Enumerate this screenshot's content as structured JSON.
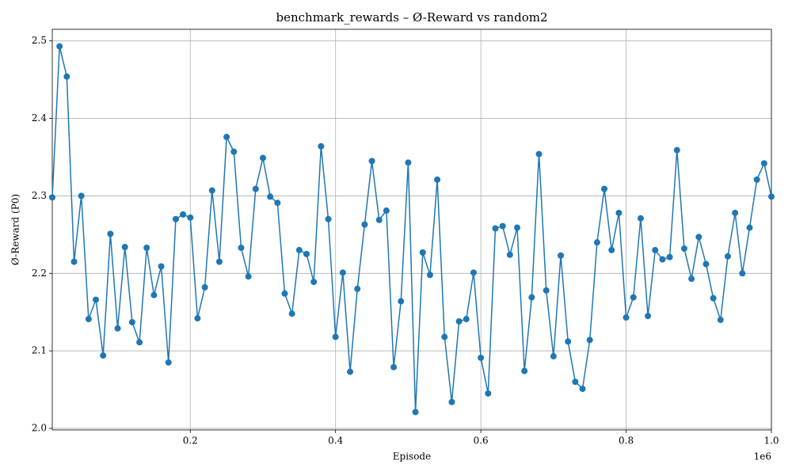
{
  "chart_data": {
    "type": "line",
    "title": "benchmark_rewards – Ø-Reward vs random2",
    "x_label": "Episode",
    "y_label": "Ø-Reward (P0)",
    "x_offset_label": "1e6",
    "x": [
      10000,
      20000,
      30000,
      40000,
      50000,
      60000,
      70000,
      80000,
      90000,
      100000,
      110000,
      120000,
      130000,
      140000,
      150000,
      160000,
      170000,
      180000,
      190000,
      200000,
      210000,
      220000,
      230000,
      240000,
      250000,
      260000,
      270000,
      280000,
      290000,
      300000,
      310000,
      320000,
      330000,
      340000,
      350000,
      360000,
      370000,
      380000,
      390000,
      400000,
      410000,
      420000,
      430000,
      440000,
      450000,
      460000,
      470000,
      480000,
      490000,
      500000,
      510000,
      520000,
      530000,
      540000,
      550000,
      560000,
      570000,
      580000,
      590000,
      600000,
      610000,
      620000,
      630000,
      640000,
      650000,
      660000,
      670000,
      680000,
      690000,
      700000,
      710000,
      720000,
      730000,
      740000,
      750000,
      760000,
      770000,
      780000,
      790000,
      800000,
      810000,
      820000,
      830000,
      840000,
      850000,
      860000,
      870000,
      880000,
      890000,
      900000,
      910000,
      920000,
      930000,
      940000,
      950000,
      960000,
      970000,
      980000,
      990000,
      1000000
    ],
    "series": [
      {
        "name": "Ø-Reward",
        "color": "#1f77b4",
        "values": [
          2.298,
          2.493,
          2.454,
          2.215,
          2.3,
          2.141,
          2.166,
          2.094,
          2.251,
          2.129,
          2.234,
          2.137,
          2.111,
          2.233,
          2.172,
          2.209,
          2.085,
          2.27,
          2.276,
          2.272,
          2.142,
          2.182,
          2.307,
          2.215,
          2.376,
          2.357,
          2.233,
          2.196,
          2.309,
          2.349,
          2.299,
          2.291,
          2.174,
          2.148,
          2.23,
          2.225,
          2.189,
          2.364,
          2.27,
          2.118,
          2.201,
          2.073,
          2.18,
          2.263,
          2.345,
          2.269,
          2.281,
          2.079,
          2.164,
          2.343,
          2.021,
          2.227,
          2.198,
          2.321,
          2.118,
          2.034,
          2.138,
          2.141,
          2.201,
          2.091,
          2.045,
          2.258,
          2.261,
          2.224,
          2.259,
          2.074,
          2.169,
          2.354,
          2.178,
          2.093,
          2.223,
          2.112,
          2.06,
          2.051,
          2.114,
          2.24,
          2.309,
          2.23,
          2.278,
          2.143,
          2.169,
          2.271,
          2.145,
          2.23,
          2.218,
          2.221,
          2.359,
          2.232,
          2.193,
          2.247,
          2.212,
          2.168,
          2.14,
          2.222,
          2.278,
          2.2,
          2.259,
          2.321,
          2.342,
          2.299
        ]
      }
    ],
    "xlim": [
      10000,
      1000000
    ],
    "xticks": [
      {
        "value": 200000,
        "label": "0.2"
      },
      {
        "value": 400000,
        "label": "0.4"
      },
      {
        "value": 600000,
        "label": "0.6"
      },
      {
        "value": 800000,
        "label": "0.8"
      },
      {
        "value": 1000000,
        "label": "1.0"
      }
    ],
    "ylim": [
      1.998,
      2.515
    ],
    "yticks": [
      {
        "value": 2,
        "label": "2.0"
      },
      2.1,
      2.2,
      2.3,
      2.4,
      2.5
    ],
    "grid": true
  }
}
